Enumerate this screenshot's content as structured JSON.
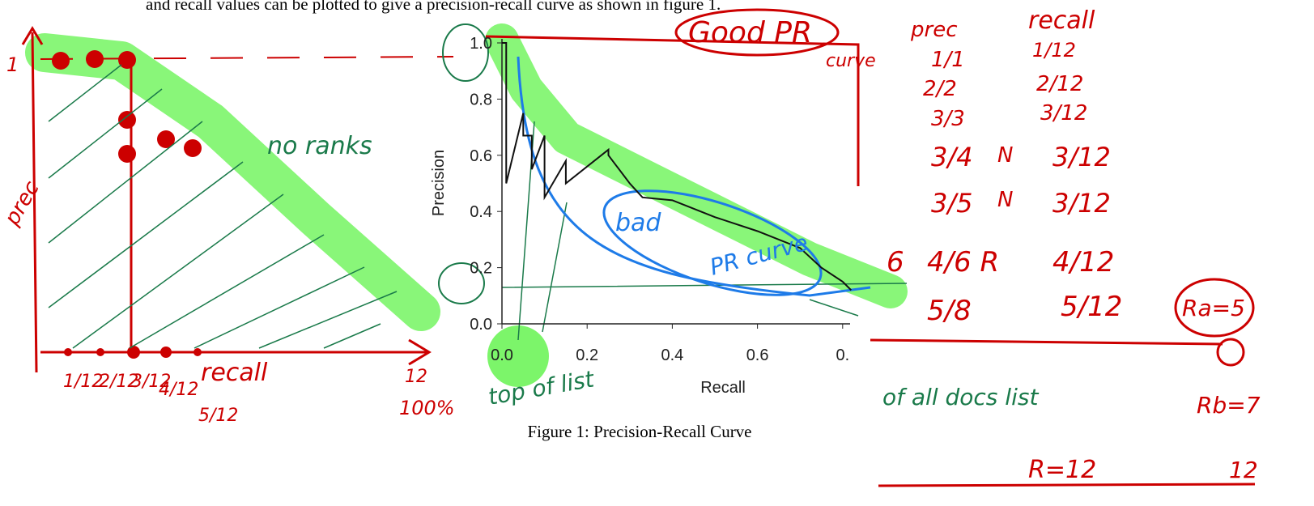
{
  "text_above": "and recall values can be plotted to give a precision-recall curve as shown in figure 1.",
  "caption": "Figure 1: Precision-Recall Curve",
  "chart_data": {
    "type": "line",
    "x_label": "Recall",
    "y_label": "Precision",
    "xlim": [
      0,
      1
    ],
    "ylim": [
      0,
      1
    ],
    "xticks": [
      {
        "value": 0,
        "label": "0.0"
      },
      {
        "value": 0.2,
        "label": "0.2"
      },
      {
        "value": 0.4,
        "label": "0.4"
      },
      {
        "value": 0.6,
        "label": "0.6"
      },
      {
        "value": 0.8,
        "label": "0."
      }
    ],
    "yticks": [
      {
        "value": 0,
        "label": "0.0"
      },
      {
        "value": 0.2,
        "label": "0.2"
      },
      {
        "value": 0.4,
        "label": "0.4"
      },
      {
        "value": 0.6,
        "label": "0.6"
      },
      {
        "value": 0.8,
        "label": "0.8"
      },
      {
        "value": 1,
        "label": "1.0"
      }
    ],
    "series": [
      {
        "color": "#111111",
        "x": [
          0,
          0.01,
          0.01,
          0.05,
          0.05,
          0.07,
          0.07,
          0.1,
          0.1,
          0.15,
          0.15,
          0.25,
          0.25,
          0.3,
          0.33,
          0.4,
          0.5,
          0.6,
          0.7,
          0.75,
          0.8,
          0.82
        ],
        "values": [
          1,
          1,
          0.5,
          0.75,
          0.67,
          0.67,
          0.55,
          0.67,
          0.45,
          0.58,
          0.5,
          0.62,
          0.6,
          0.5,
          0.45,
          0.44,
          0.38,
          0.33,
          0.27,
          0.2,
          0.15,
          0.12
        ]
      }
    ]
  },
  "annotations": [
    "Good PR",
    "curve",
    "prec",
    "recall",
    "1/1",
    "1/12",
    "2/2",
    "2/12",
    "3/3",
    "3/12",
    "3/4",
    "N",
    "3/12",
    "3/5",
    "N",
    "3/12",
    "6",
    "4/6 R",
    "4/12",
    "5/8",
    "5/12",
    "Ra=5",
    "of all docs list",
    "Rb=7",
    "R=12",
    "12",
    "no ranks",
    "prec",
    "1",
    "1/12",
    "2/12",
    "3/12",
    "4/12",
    "recall",
    "5/12",
    "12",
    "100%",
    "bad",
    "PR curve",
    "top of list"
  ]
}
